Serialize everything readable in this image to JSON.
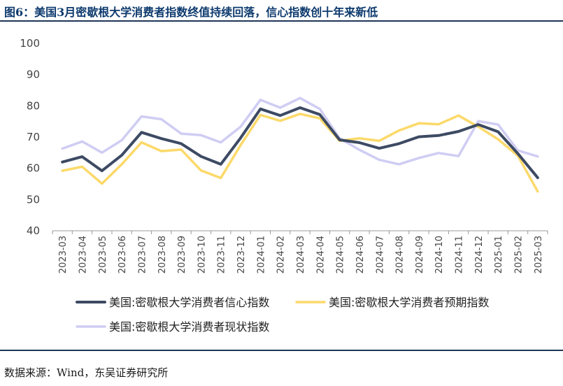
{
  "title": "图6：美国3月密歇根大学消费者指数终值持续回落，信心指数创十年来新低",
  "source": "数据来源：Wind，东吴证券研究所",
  "chart_data": {
    "type": "line",
    "categories": [
      "2023-03",
      "2023-04",
      "2023-05",
      "2023-06",
      "2023-07",
      "2023-08",
      "2023-09",
      "2023-10",
      "2023-11",
      "2023-12",
      "2024-01",
      "2024-02",
      "2024-03",
      "2024-04",
      "2024-05",
      "2024-06",
      "2024-07",
      "2024-08",
      "2024-09",
      "2024-10",
      "2024-11",
      "2024-12",
      "2025-01",
      "2025-02",
      "2025-03"
    ],
    "ylim": [
      40,
      100
    ],
    "yticks": [
      40,
      50,
      60,
      70,
      80,
      90,
      100
    ],
    "legend_position": "bottom",
    "grid": false,
    "series": [
      {
        "name": "美国:密歇根大学消费者信心指数",
        "color": "#3d4a63",
        "values": [
          62.0,
          63.7,
          59.2,
          64.2,
          71.5,
          69.5,
          67.9,
          63.8,
          61.3,
          69.7,
          79.0,
          76.9,
          79.4,
          77.2,
          69.1,
          68.2,
          66.4,
          67.9,
          70.1,
          70.5,
          71.8,
          74.0,
          71.7,
          64.7,
          57.0
        ]
      },
      {
        "name": "美国:密歇根大学消费者预期指数",
        "color": "#fcd96a",
        "values": [
          59.2,
          60.5,
          55.1,
          61.3,
          68.3,
          65.5,
          66.0,
          59.3,
          56.9,
          67.4,
          77.1,
          75.2,
          77.4,
          76.0,
          68.8,
          69.6,
          68.8,
          72.1,
          74.4,
          74.1,
          76.9,
          73.3,
          69.3,
          64.0,
          52.6
        ]
      },
      {
        "name": "美国:密歇根大学消费者现状指数",
        "color": "#cfcdf3",
        "values": [
          66.3,
          68.6,
          65.0,
          69.0,
          76.6,
          75.7,
          71.1,
          70.6,
          68.3,
          73.3,
          81.9,
          79.4,
          82.5,
          79.0,
          69.6,
          65.9,
          62.7,
          61.3,
          63.3,
          64.9,
          63.9,
          75.1,
          74.0,
          65.7,
          63.8
        ]
      }
    ]
  }
}
